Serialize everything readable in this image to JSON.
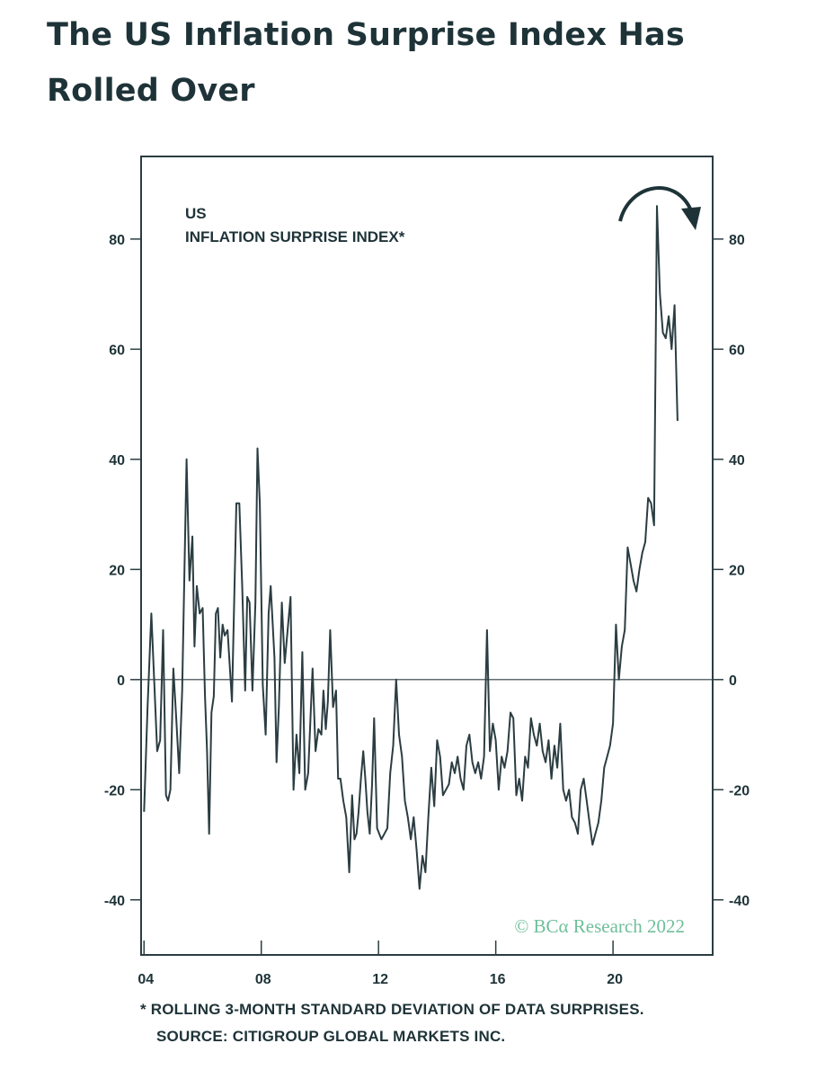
{
  "page": {
    "title": "The US Inflation Surprise Index Has Rolled Over"
  },
  "footnote": {
    "line1": "* ROLLING 3-MONTH STANDARD DEVIATION OF DATA SURPRISES.",
    "line2": "SOURCE: CITIGROUP GLOBAL MARKETS INC."
  },
  "colors": {
    "text": "#1e3338",
    "line": "#2b3d42",
    "watermark": "#6fbf9a"
  },
  "chart_data": {
    "type": "line",
    "title_lines": [
      "US",
      "INFLATION SURPRISE INDEX*"
    ],
    "watermark": "© BCα Research 2022",
    "xlabel": "",
    "ylabel": "",
    "xlim": [
      2003.9,
      2023.4
    ],
    "ylim": [
      -50,
      95
    ],
    "x_ticks": [
      2004,
      2008,
      2012,
      2016,
      2020
    ],
    "x_tick_labels": [
      "04",
      "08",
      "12",
      "16",
      "20"
    ],
    "y_ticks": [
      -40,
      -20,
      0,
      20,
      40,
      60,
      80
    ],
    "y_tick_labels": [
      "-40",
      "-20",
      "0",
      "20",
      "40",
      "60",
      "80"
    ],
    "zero_line": true,
    "grid": false,
    "annotation": "curved arrow at peak indicating rollover",
    "series": [
      {
        "x": [
          2004.0,
          2004.12,
          2004.25,
          2004.45,
          2004.55,
          2004.65,
          2004.75,
          2004.82,
          2004.9,
          2005.0,
          2005.1,
          2005.2,
          2005.3,
          2005.45,
          2005.55,
          2005.65,
          2005.72,
          2005.8,
          2005.9,
          2006.0,
          2006.08,
          2006.15,
          2006.22,
          2006.3,
          2006.38,
          2006.45,
          2006.52,
          2006.6,
          2006.68,
          2006.75,
          2006.85,
          2007.0,
          2007.15,
          2007.25,
          2007.35,
          2007.45,
          2007.52,
          2007.6,
          2007.7,
          2007.8,
          2007.87,
          2007.95,
          2008.05,
          2008.15,
          2008.25,
          2008.32,
          2008.45,
          2008.52,
          2008.6,
          2008.7,
          2008.8,
          2009.0,
          2009.1,
          2009.2,
          2009.3,
          2009.4,
          2009.5,
          2009.6,
          2009.75,
          2009.85,
          2009.95,
          2010.05,
          2010.12,
          2010.2,
          2010.27,
          2010.35,
          2010.45,
          2010.55,
          2010.62,
          2010.7,
          2010.8,
          2010.9,
          2011.0,
          2011.1,
          2011.18,
          2011.25,
          2011.32,
          2011.4,
          2011.48,
          2011.55,
          2011.62,
          2011.7,
          2011.78,
          2011.85,
          2011.95,
          2012.1,
          2012.2,
          2012.3,
          2012.4,
          2012.5,
          2012.6,
          2012.7,
          2012.8,
          2012.9,
          2013.0,
          2013.1,
          2013.2,
          2013.3,
          2013.4,
          2013.5,
          2013.6,
          2013.7,
          2013.8,
          2013.9,
          2014.0,
          2014.1,
          2014.2,
          2014.3,
          2014.4,
          2014.5,
          2014.6,
          2014.7,
          2014.8,
          2014.9,
          2015.0,
          2015.1,
          2015.2,
          2015.3,
          2015.4,
          2015.5,
          2015.6,
          2015.7,
          2015.8,
          2015.9,
          2016.0,
          2016.1,
          2016.2,
          2016.3,
          2016.4,
          2016.5,
          2016.6,
          2016.7,
          2016.8,
          2016.9,
          2017.0,
          2017.1,
          2017.2,
          2017.3,
          2017.4,
          2017.5,
          2017.6,
          2017.7,
          2017.8,
          2017.9,
          2018.0,
          2018.1,
          2018.2,
          2018.3,
          2018.4,
          2018.5,
          2018.6,
          2018.7,
          2018.8,
          2018.9,
          2019.0,
          2019.1,
          2019.2,
          2019.3,
          2019.4,
          2019.5,
          2019.6,
          2019.7,
          2019.8,
          2019.9,
          2020.0,
          2020.1,
          2020.2,
          2020.3,
          2020.4,
          2020.5,
          2020.6,
          2020.7,
          2020.8,
          2020.9,
          2021.0,
          2021.1,
          2021.2,
          2021.3,
          2021.4,
          2021.5,
          2021.6,
          2021.7,
          2021.8,
          2021.9,
          2022.0,
          2022.1,
          2022.2
        ],
        "y": [
          -24,
          -5,
          12,
          -13,
          -11,
          9,
          -21,
          -22,
          -20,
          2,
          -7,
          -17,
          -2,
          40,
          18,
          26,
          6,
          17,
          12,
          13,
          -3,
          -13,
          -28,
          -6,
          -3,
          12,
          13,
          4,
          10,
          8,
          9,
          -4,
          32,
          32,
          17,
          -2,
          15,
          14,
          -2,
          14,
          42,
          32,
          -1,
          -10,
          12,
          17,
          4,
          -15,
          -5,
          14,
          3,
          15,
          -20,
          -10,
          -17,
          5,
          -20,
          -17,
          2,
          -13,
          -9,
          -10,
          -2,
          -9,
          -4,
          9,
          -5,
          -2,
          -18,
          -18,
          -22,
          -25,
          -35,
          -21,
          -29,
          -28,
          -24,
          -18,
          -13,
          -18,
          -24,
          -28,
          -19,
          -7,
          -27,
          -29,
          -28,
          -27,
          -17,
          -12,
          0,
          -10,
          -14,
          -22,
          -25,
          -29,
          -25,
          -31,
          -38,
          -32,
          -35,
          -25,
          -16,
          -23,
          -11,
          -14,
          -21,
          -20,
          -19,
          -15,
          -17,
          -14,
          -18,
          -20,
          -12,
          -10,
          -15,
          -17,
          -15,
          -18,
          -14,
          9,
          -13,
          -8,
          -11,
          -20,
          -14,
          -16,
          -13,
          -6,
          -7,
          -21,
          -18,
          -22,
          -14,
          -16,
          -7,
          -10,
          -12,
          -8,
          -13,
          -15,
          -11,
          -18,
          -12,
          -16,
          -8,
          -20,
          -22,
          -20,
          -25,
          -26,
          -28,
          -20,
          -18,
          -22,
          -26,
          -30,
          -28,
          -26,
          -22,
          -16,
          -14,
          -12,
          -8,
          10,
          0,
          6,
          9,
          24,
          21,
          18,
          16,
          20,
          23,
          25,
          33,
          32,
          28,
          86,
          70,
          63,
          62,
          66,
          60,
          68,
          47
        ]
      }
    ]
  }
}
